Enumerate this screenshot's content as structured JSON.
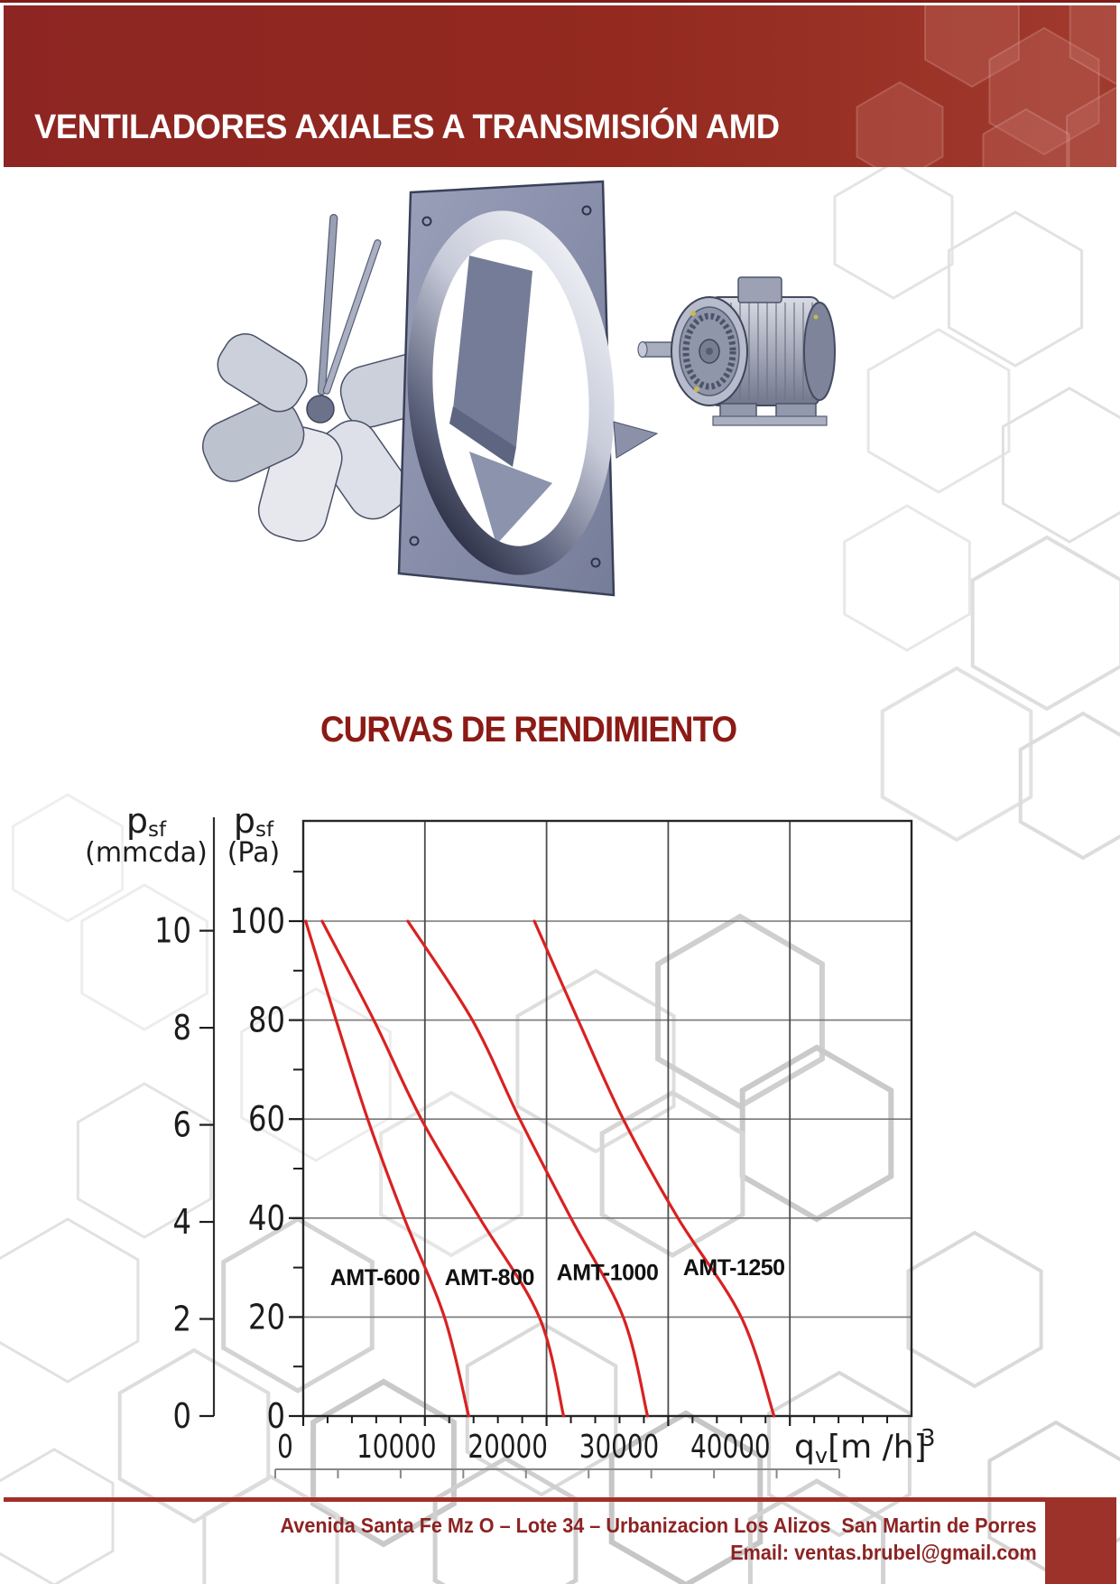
{
  "header": {
    "title": "VENTILADORES AXIALES A TRANSMISIÓN AMD",
    "bg_left": "#8d2522",
    "bg_right": "#a13a2e"
  },
  "footer": {
    "address": "Avenida Santa Fe Mz O – Lote 34 – Urbanizacion Los Alizos  San Martin de Porres",
    "email": "Email: ventas.brubel@gmail.com",
    "text_color": "#8c2322",
    "rule_color": "#a22f28",
    "block_color": "#9d322b"
  },
  "chart_data": {
    "type": "line",
    "title": "CURVAS DE RENDIMIENTO",
    "title_color": "#8c1a15",
    "curve_color": "#d92121",
    "grid": true,
    "x_axis": {
      "label_prefix": "q",
      "label_sub": "v",
      "label_bracket": "[m /h]",
      "label_sup": "3",
      "min": 0,
      "max": 50000,
      "major_step": 10000,
      "minor_step": 2000,
      "tick_values": [
        0,
        10000,
        20000,
        30000,
        40000
      ],
      "tick_labels": [
        "0",
        "10000",
        "20000",
        "30000",
        "40000"
      ]
    },
    "y_axis_pa": {
      "title_main": "p",
      "title_sub": "sf",
      "title_unit": "(Pa)",
      "min": 0,
      "max": 120,
      "major_step": 20,
      "minor_step": 10,
      "tick_values": [
        100,
        80,
        60,
        40,
        20,
        0
      ],
      "tick_labels": [
        "100",
        "80",
        "60",
        "40",
        "20",
        "0"
      ]
    },
    "y_axis_mmcda": {
      "title_main": "p",
      "title_sub": "sf",
      "title_unit": "(mmcda)",
      "pa_per_unit": 9.80665,
      "tick_values": [
        10,
        8,
        6,
        4,
        2,
        0
      ],
      "tick_labels": [
        "10",
        "8",
        "6",
        "4",
        "2",
        "0"
      ]
    },
    "series": [
      {
        "name": "AMT-600",
        "points": [
          [
            200,
            100
          ],
          [
            2700,
            80
          ],
          [
            5300,
            60
          ],
          [
            8300,
            40
          ],
          [
            11600,
            20
          ],
          [
            13600,
            0
          ]
        ],
        "label_pos": [
          5900,
          26.5
        ]
      },
      {
        "name": "AMT-800",
        "points": [
          [
            1550,
            100
          ],
          [
            5800,
            80
          ],
          [
            9700,
            60
          ],
          [
            14500,
            40
          ],
          [
            19400,
            20
          ],
          [
            21400,
            0
          ]
        ],
        "label_pos": [
          15300,
          26.5
        ]
      },
      {
        "name": "AMT-1000",
        "points": [
          [
            8600,
            100
          ],
          [
            13900,
            80
          ],
          [
            17800,
            60
          ],
          [
            22000,
            40
          ],
          [
            26300,
            20
          ],
          [
            28300,
            0
          ]
        ],
        "label_pos": [
          25000,
          27.5
        ]
      },
      {
        "name": "AMT-1250",
        "points": [
          [
            19000,
            100
          ],
          [
            22600,
            80
          ],
          [
            26300,
            60
          ],
          [
            30800,
            40
          ],
          [
            36000,
            20
          ],
          [
            38700,
            0
          ]
        ],
        "label_pos": [
          35400,
          28.5
        ]
      }
    ]
  }
}
